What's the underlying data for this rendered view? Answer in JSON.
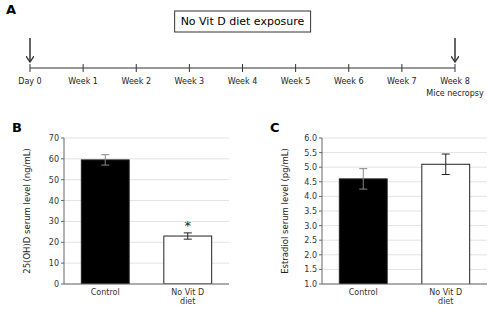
{
  "chart_data": [
    {
      "type": "timeline",
      "title": "No Vit D diet exposure",
      "panel_label": "A",
      "categories": [
        "Day 0",
        "Week 1",
        "Week 2",
        "Week 3",
        "Week 4",
        "Week 5",
        "Week 6",
        "Week 7",
        "Week 8"
      ],
      "annotations": [
        {
          "text": "Mice necropsy",
          "index": 8
        }
      ]
    },
    {
      "type": "bar",
      "panel_label": "B",
      "categories": [
        "Control",
        "No Vit D\ndiet"
      ],
      "values": [
        59.5,
        23.0
      ],
      "errors": [
        2.5,
        1.5
      ],
      "colors": [
        "#000000",
        "#ffffff"
      ],
      "ylabel": "25(OH)D serum level (ng/mL)",
      "ylim": [
        0,
        70
      ],
      "yticks": [
        0,
        10,
        20,
        30,
        40,
        50,
        60,
        70
      ],
      "annotations": [
        {
          "text": "*",
          "index": 1
        }
      ]
    },
    {
      "type": "bar",
      "panel_label": "C",
      "categories": [
        "Control",
        "No Vit D\ndiet"
      ],
      "values": [
        4.6,
        5.1
      ],
      "errors": [
        0.35,
        0.35
      ],
      "colors": [
        "#000000",
        "#ffffff"
      ],
      "ylabel": "Estradiol serum level (pg/mL)",
      "ylim": [
        1,
        6
      ],
      "yticks": [
        {
          "value": 1.0,
          "label": "1.0"
        },
        {
          "value": 1.5,
          "label": "1.5"
        },
        {
          "value": 2.0,
          "label": "2.0"
        },
        {
          "value": 2.5,
          "label": "2.5"
        },
        {
          "value": 3.0,
          "label": "3.0"
        },
        {
          "value": 3.5,
          "label": "3.5"
        },
        {
          "value": 4.0,
          "label": "4.0"
        },
        {
          "value": 4.5,
          "label": "4.5"
        },
        {
          "value": 5.0,
          "label": "5.0"
        },
        {
          "value": 5.5,
          "label": "5.5"
        },
        {
          "value": 6.0,
          "label": "6.0"
        }
      ]
    }
  ]
}
